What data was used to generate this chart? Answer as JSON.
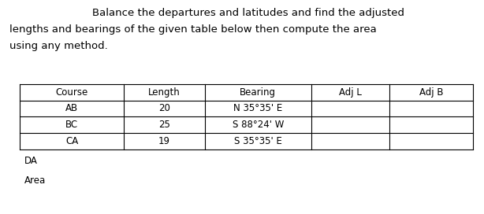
{
  "title_lines": [
    "Balance the departures and latitudes and find the adjusted",
    "lengths and bearings of the given table below then compute the area",
    "using any method."
  ],
  "title_indent": [
    0.19,
    0.02,
    0.02
  ],
  "col_headers": [
    "Course",
    "Length",
    "Bearing",
    "Adj L",
    "Adj B"
  ],
  "rows": [
    [
      "AB",
      "20",
      "N 35°35' E",
      "",
      ""
    ],
    [
      "BC",
      "25",
      "S 88°24' W",
      "",
      ""
    ],
    [
      "CA",
      "19",
      "S 35°35' E",
      "",
      ""
    ]
  ],
  "extra_rows": [
    "DA",
    "Area"
  ],
  "bg_color": "#ffffff",
  "text_color": "#000000",
  "line_color": "#000000",
  "font_size": 8.5,
  "title_font_size": 9.5
}
